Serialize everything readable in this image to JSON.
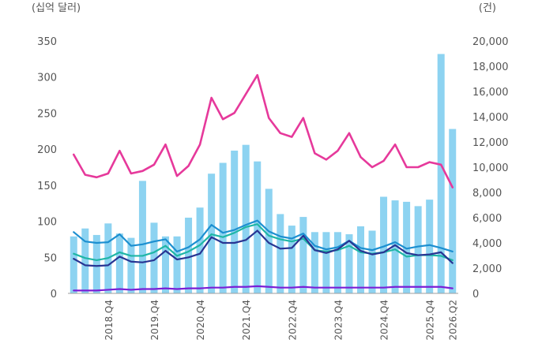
{
  "chart_data": {
    "type": "bar+line",
    "left_axis_unit": "(십억 달러)",
    "right_axis_unit": "(건)",
    "left_ticks": [
      "0",
      "50",
      "100",
      "150",
      "200",
      "250",
      "300",
      "350"
    ],
    "right_ticks": [
      "0",
      "2,000",
      "4,000",
      "6,000",
      "8,000",
      "10,000",
      "12,000",
      "14,000",
      "16,000",
      "18,000",
      "20,000"
    ],
    "ylim_left": [
      0,
      350
    ],
    "ylim_right": [
      0,
      20000
    ],
    "x_tick_labels": [
      {
        "index": 3,
        "label": "2018.Q4"
      },
      {
        "index": 7,
        "label": "2019.Q4"
      },
      {
        "index": 11,
        "label": "2020.Q4"
      },
      {
        "index": 15,
        "label": "2021.Q4"
      },
      {
        "index": 19,
        "label": "2022.Q4"
      },
      {
        "index": 23,
        "label": "2023.Q4"
      },
      {
        "index": 27,
        "label": "2024.Q4"
      },
      {
        "index": 31,
        "label": "2025.Q4"
      },
      {
        "index": 33,
        "label": "2026.Q2"
      }
    ],
    "grid": false,
    "colors": {
      "bars": "#8dd3f1",
      "pink": "#e6399b",
      "teal": "#1fb6a6",
      "lightblue": "#1c8fd0",
      "navy": "#283593",
      "purple": "#7b1fd6"
    },
    "bars": {
      "axis": "left",
      "values": [
        79,
        90,
        81,
        97,
        83,
        77,
        156,
        98,
        79,
        79,
        105,
        119,
        166,
        181,
        198,
        206,
        183,
        145,
        110,
        94,
        106,
        85,
        85,
        85,
        82,
        93,
        87,
        134,
        129,
        127,
        121,
        130,
        332,
        228
      ]
    },
    "series": [
      {
        "key": "pink",
        "axis": "right",
        "values": [
          11000,
          9400,
          9200,
          9500,
          11300,
          9500,
          9700,
          10200,
          11800,
          9300,
          10100,
          11800,
          15500,
          13800,
          14300,
          15800,
          17300,
          13900,
          12700,
          12400,
          13900,
          11100,
          10600,
          11300,
          12700,
          10800,
          10000,
          10500,
          11800,
          10000,
          10000,
          10400,
          10200,
          8400
        ]
      },
      {
        "key": "lightblue",
        "axis": "left",
        "values": [
          85,
          72,
          70,
          71,
          82,
          66,
          68,
          72,
          75,
          58,
          64,
          75,
          95,
          84,
          88,
          95,
          101,
          86,
          79,
          76,
          83,
          66,
          61,
          64,
          73,
          63,
          60,
          65,
          71,
          62,
          65,
          67,
          63,
          58
        ]
      },
      {
        "key": "teal",
        "axis": "left",
        "values": [
          55,
          49,
          46,
          49,
          57,
          52,
          52,
          57,
          66,
          52,
          58,
          67,
          82,
          78,
          84,
          92,
          96,
          80,
          75,
          72,
          76,
          60,
          58,
          60,
          66,
          57,
          55,
          57,
          61,
          51,
          53,
          53,
          52,
          46
        ]
      },
      {
        "key": "navy",
        "axis": "left",
        "values": [
          48,
          39,
          38,
          39,
          51,
          44,
          43,
          46,
          59,
          47,
          50,
          55,
          78,
          70,
          70,
          74,
          87,
          70,
          62,
          63,
          80,
          60,
          56,
          61,
          73,
          59,
          54,
          57,
          67,
          56,
          53,
          54,
          57,
          42
        ]
      },
      {
        "key": "purple",
        "axis": "left",
        "values": [
          4,
          4,
          4,
          5,
          6,
          5,
          6,
          6,
          7,
          6,
          7,
          7,
          8,
          8,
          9,
          9,
          10,
          9,
          8,
          8,
          9,
          8,
          8,
          8,
          8,
          8,
          8,
          8,
          9,
          9,
          9,
          9,
          9,
          7
        ]
      }
    ]
  }
}
